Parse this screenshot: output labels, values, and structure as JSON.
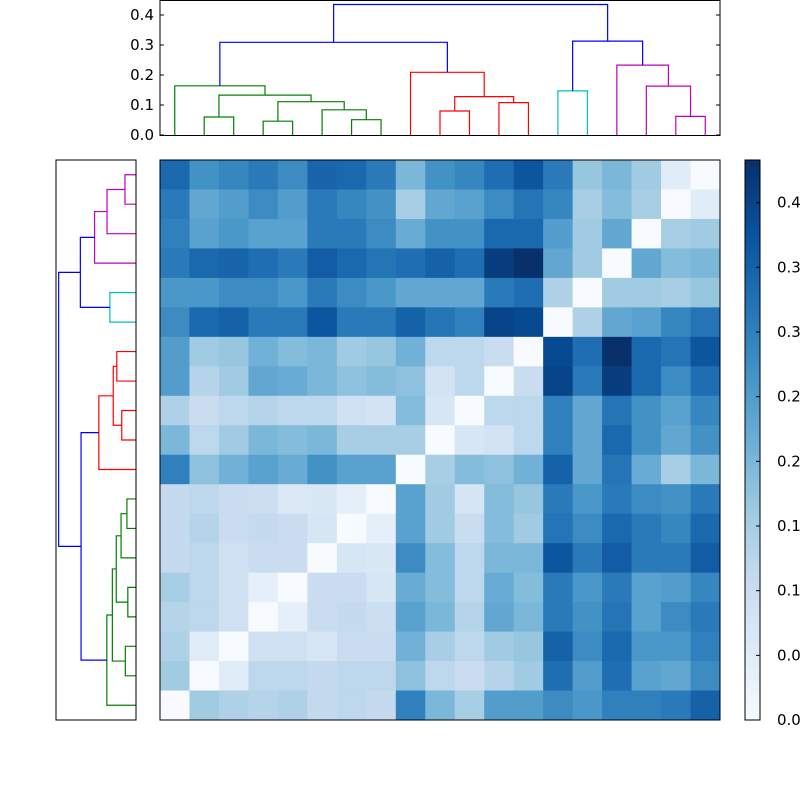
{
  "chart_data": {
    "type": "heatmap",
    "title": "",
    "colormap": "Blues",
    "color_range": [
      0.0,
      0.433
    ],
    "colorbar_ticks": [
      "0.00",
      "0.05",
      "0.10",
      "0.15",
      "0.20",
      "0.25",
      "0.30",
      "0.35",
      "0.40"
    ],
    "dendrogram_top": {
      "ylim": [
        0,
        0.45
      ],
      "yticks": [
        "0.0",
        "0.1",
        "0.2",
        "0.3",
        "0.4"
      ],
      "leaf_count": 19,
      "merges": [
        [
          1,
          2,
          0.06,
          "#008000"
        ],
        [
          3,
          4,
          0.046,
          "#008000"
        ],
        [
          6,
          7,
          0.051,
          "#008000"
        ],
        [
          5,
          21,
          0.084,
          "#008000"
        ],
        [
          20,
          22,
          0.111,
          "#008000"
        ],
        [
          19,
          23,
          0.133,
          "#008000"
        ],
        [
          0,
          24,
          0.164,
          "#008000"
        ],
        [
          9,
          10,
          0.08,
          "#ff0000"
        ],
        [
          11,
          12,
          0.108,
          "#ff0000"
        ],
        [
          26,
          27,
          0.128,
          "#ff0000"
        ],
        [
          8,
          28,
          0.209,
          "#ff0000"
        ],
        [
          25,
          29,
          0.309,
          "#0000ff"
        ],
        [
          13,
          14,
          0.147,
          "#00bfbf"
        ],
        [
          17,
          18,
          0.062,
          "#bf00bf"
        ],
        [
          16,
          32,
          0.163,
          "#bf00bf"
        ],
        [
          15,
          33,
          0.233,
          "#bf00bf"
        ],
        [
          31,
          34,
          0.313,
          "#0000ff"
        ],
        [
          30,
          35,
          0.435,
          "#0000ff"
        ]
      ]
    },
    "matrix_rows_top_to_bottom": [
      [
        0.34,
        0.27,
        0.29,
        0.31,
        0.28,
        0.345,
        0.34,
        0.31,
        0.2,
        0.27,
        0.29,
        0.33,
        0.37,
        0.31,
        0.17,
        0.2,
        0.16,
        0.05,
        0.0
      ],
      [
        0.31,
        0.23,
        0.25,
        0.28,
        0.25,
        0.31,
        0.29,
        0.27,
        0.15,
        0.23,
        0.24,
        0.28,
        0.32,
        0.29,
        0.15,
        0.19,
        0.15,
        0.0,
        0.05
      ],
      [
        0.3,
        0.24,
        0.26,
        0.24,
        0.24,
        0.31,
        0.31,
        0.28,
        0.22,
        0.27,
        0.27,
        0.34,
        0.34,
        0.25,
        0.16,
        0.23,
        0.0,
        0.15,
        0.16
      ],
      [
        0.31,
        0.34,
        0.345,
        0.33,
        0.31,
        0.36,
        0.34,
        0.32,
        0.33,
        0.35,
        0.33,
        0.41,
        0.433,
        0.23,
        0.16,
        0.0,
        0.23,
        0.19,
        0.2
      ],
      [
        0.26,
        0.26,
        0.28,
        0.28,
        0.26,
        0.31,
        0.28,
        0.26,
        0.23,
        0.23,
        0.23,
        0.31,
        0.33,
        0.14,
        0.0,
        0.16,
        0.16,
        0.15,
        0.17
      ],
      [
        0.28,
        0.34,
        0.35,
        0.31,
        0.31,
        0.37,
        0.31,
        0.31,
        0.35,
        0.32,
        0.3,
        0.4,
        0.39,
        0.0,
        0.14,
        0.23,
        0.24,
        0.29,
        0.32
      ],
      [
        0.25,
        0.16,
        0.17,
        0.21,
        0.19,
        0.2,
        0.16,
        0.17,
        0.21,
        0.12,
        0.12,
        0.1,
        0.0,
        0.39,
        0.33,
        0.433,
        0.34,
        0.32,
        0.37
      ],
      [
        0.25,
        0.13,
        0.16,
        0.23,
        0.22,
        0.2,
        0.18,
        0.19,
        0.18,
        0.08,
        0.12,
        0.0,
        0.1,
        0.4,
        0.31,
        0.41,
        0.34,
        0.28,
        0.33
      ],
      [
        0.14,
        0.1,
        0.12,
        0.13,
        0.12,
        0.12,
        0.09,
        0.08,
        0.19,
        0.07,
        0.0,
        0.12,
        0.12,
        0.3,
        0.23,
        0.32,
        0.27,
        0.24,
        0.29
      ],
      [
        0.2,
        0.12,
        0.16,
        0.2,
        0.19,
        0.2,
        0.15,
        0.15,
        0.15,
        0.0,
        0.07,
        0.08,
        0.12,
        0.3,
        0.23,
        0.34,
        0.27,
        0.23,
        0.27
      ],
      [
        0.3,
        0.18,
        0.21,
        0.24,
        0.22,
        0.27,
        0.24,
        0.24,
        0.0,
        0.15,
        0.19,
        0.18,
        0.21,
        0.35,
        0.23,
        0.32,
        0.22,
        0.15,
        0.2
      ],
      [
        0.11,
        0.12,
        0.1,
        0.095,
        0.06,
        0.065,
        0.04,
        0.0,
        0.24,
        0.16,
        0.075,
        0.19,
        0.17,
        0.31,
        0.26,
        0.31,
        0.28,
        0.27,
        0.31
      ],
      [
        0.11,
        0.13,
        0.1,
        0.11,
        0.1,
        0.07,
        0.0,
        0.04,
        0.24,
        0.16,
        0.1,
        0.19,
        0.16,
        0.32,
        0.28,
        0.34,
        0.31,
        0.29,
        0.34
      ],
      [
        0.11,
        0.12,
        0.09,
        0.1,
        0.1,
        0.0,
        0.07,
        0.065,
        0.28,
        0.19,
        0.12,
        0.2,
        0.2,
        0.37,
        0.31,
        0.36,
        0.31,
        0.31,
        0.36
      ],
      [
        0.15,
        0.12,
        0.09,
        0.04,
        0.0,
        0.1,
        0.1,
        0.07,
        0.22,
        0.19,
        0.12,
        0.22,
        0.19,
        0.31,
        0.26,
        0.31,
        0.24,
        0.25,
        0.29
      ],
      [
        0.13,
        0.12,
        0.09,
        0.0,
        0.04,
        0.1,
        0.11,
        0.095,
        0.24,
        0.2,
        0.13,
        0.23,
        0.2,
        0.31,
        0.27,
        0.32,
        0.24,
        0.28,
        0.31
      ],
      [
        0.14,
        0.05,
        0.0,
        0.09,
        0.09,
        0.07,
        0.1,
        0.1,
        0.21,
        0.15,
        0.12,
        0.16,
        0.17,
        0.35,
        0.28,
        0.34,
        0.26,
        0.26,
        0.3
      ],
      [
        0.16,
        0.0,
        0.05,
        0.12,
        0.12,
        0.11,
        0.12,
        0.12,
        0.18,
        0.12,
        0.1,
        0.13,
        0.16,
        0.33,
        0.25,
        0.33,
        0.24,
        0.23,
        0.28
      ],
      [
        0.0,
        0.16,
        0.14,
        0.13,
        0.14,
        0.11,
        0.12,
        0.11,
        0.3,
        0.2,
        0.15,
        0.25,
        0.25,
        0.28,
        0.26,
        0.3,
        0.3,
        0.31,
        0.35
      ]
    ]
  }
}
